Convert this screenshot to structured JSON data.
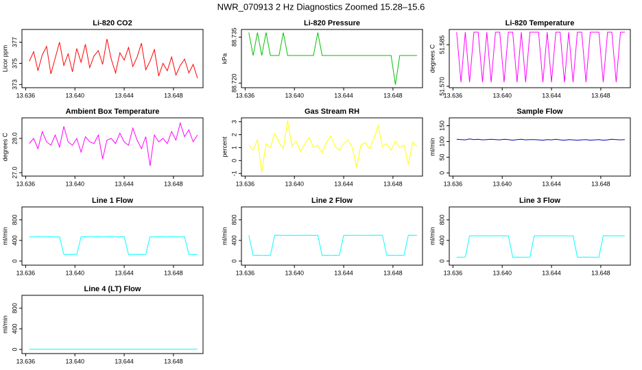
{
  "title": "NWR_070913 2 Hz Diagnostics Zoomed 15.28–15.6",
  "chart_data": [
    {
      "type": "line",
      "title": "Li-820 CO2",
      "ylabel": "Licor ppm",
      "color": "#ff0000",
      "x": [
        13.6363,
        13.63665,
        13.637,
        13.63735,
        13.6377,
        13.63805,
        13.6384,
        13.63875,
        13.6391,
        13.63945,
        13.6398,
        13.64015,
        13.6405,
        13.64085,
        13.6412,
        13.64155,
        13.6419,
        13.64225,
        13.6426,
        13.64295,
        13.6433,
        13.64365,
        13.644,
        13.64435,
        13.6447,
        13.64505,
        13.6454,
        13.64575,
        13.6461,
        13.64645,
        13.6468,
        13.64715,
        13.6475,
        13.64785,
        13.6482,
        13.64855,
        13.6489,
        13.64925,
        13.6496,
        13.64995
      ],
      "values": [
        375.2,
        376.1,
        374.3,
        375.8,
        376.6,
        374.0,
        375.5,
        377.0,
        374.8,
        375.9,
        374.2,
        376.4,
        375.1,
        376.8,
        374.6,
        375.7,
        376.2,
        374.9,
        377.3,
        375.4,
        374.1,
        376.0,
        375.3,
        376.5,
        374.7,
        375.6,
        376.9,
        374.4,
        375.2,
        376.3,
        373.8,
        375.0,
        374.3,
        375.6,
        373.9,
        374.8,
        375.4,
        374.1,
        374.9,
        373.6
      ],
      "xlim": [
        13.6357,
        13.6504
      ],
      "xticks": [
        13.636,
        {
          "value": 13.64,
          "label": "13.640"
        },
        13.644,
        13.648
      ],
      "ylim": [
        372.7,
        378.2
      ],
      "yticks": [
        373,
        375,
        377
      ]
    },
    {
      "type": "line",
      "title": "Li-820 Pressure",
      "ylabel": "kPa",
      "color": "#00c000",
      "x": [
        13.6363,
        13.63665,
        13.637,
        13.63735,
        13.6377,
        13.63805,
        13.6384,
        13.63875,
        13.6391,
        13.63945,
        13.6398,
        13.64015,
        13.6405,
        13.64085,
        13.6412,
        13.64155,
        13.6419,
        13.64225,
        13.6426,
        13.64295,
        13.6433,
        13.64365,
        13.644,
        13.64435,
        13.6447,
        13.64505,
        13.6454,
        13.64575,
        13.6461,
        13.64645,
        13.6468,
        13.64715,
        13.6475,
        13.64785,
        13.6482,
        13.64855,
        13.6489,
        13.64925,
        13.6496,
        13.64995
      ],
      "values": [
        88.7365,
        88.729,
        88.7365,
        88.729,
        88.7365,
        88.729,
        88.729,
        88.729,
        88.7365,
        88.729,
        88.729,
        88.729,
        88.729,
        88.729,
        88.729,
        88.729,
        88.7365,
        88.729,
        88.729,
        88.729,
        88.729,
        88.729,
        88.729,
        88.729,
        88.729,
        88.729,
        88.729,
        88.729,
        88.729,
        88.729,
        88.729,
        88.729,
        88.729,
        88.729,
        88.7195,
        88.729,
        88.729,
        88.729,
        88.729,
        88.729
      ],
      "xlim": [
        13.6357,
        13.6504
      ],
      "xticks": [
        13.636,
        {
          "value": 13.64,
          "label": "13.640"
        },
        13.644,
        13.648
      ],
      "ylim": [
        88.7185,
        88.7375
      ],
      "yticks": [
        {
          "value": 88.72,
          "label": "88.720"
        },
        88.735
      ]
    },
    {
      "type": "line",
      "title": "Li-820 Temperature",
      "ylabel": "degrees C",
      "color": "#ff00ff",
      "x": [
        13.6363,
        13.63665,
        13.637,
        13.63735,
        13.6377,
        13.63805,
        13.6384,
        13.63875,
        13.6391,
        13.63945,
        13.6398,
        13.64015,
        13.6405,
        13.64085,
        13.6412,
        13.64155,
        13.6419,
        13.64225,
        13.6426,
        13.64295,
        13.6433,
        13.64365,
        13.644,
        13.64435,
        13.6447,
        13.64505,
        13.6454,
        13.64575,
        13.6461,
        13.64645,
        13.6468,
        13.64715,
        13.6475,
        13.64785,
        13.6482,
        13.64855,
        13.6489,
        13.64925,
        13.6496,
        13.64995
      ],
      "values": [
        51.5895,
        51.5715,
        51.5895,
        51.5715,
        51.5895,
        51.5895,
        51.5715,
        51.5895,
        51.5715,
        51.5895,
        51.5895,
        51.5715,
        51.5895,
        51.5895,
        51.5715,
        51.5895,
        51.5715,
        51.5895,
        51.5895,
        51.5895,
        51.5715,
        51.5895,
        51.5715,
        51.5895,
        51.5895,
        51.5715,
        51.5895,
        51.5715,
        51.5895,
        51.5895,
        51.5715,
        51.5895,
        51.5895,
        51.5895,
        51.5715,
        51.5895,
        51.5895,
        51.5715,
        51.5895,
        51.5895
      ],
      "xlim": [
        13.6357,
        13.6504
      ],
      "xticks": [
        13.636,
        {
          "value": 13.64,
          "label": "13.640"
        },
        13.644,
        13.648
      ],
      "ylim": [
        51.5695,
        51.5905
      ],
      "yticks": [
        {
          "value": 51.57,
          "label": "51.570"
        },
        51.585
      ]
    },
    {
      "type": "line",
      "title": "Ambient Box Temperature",
      "ylabel": "degrees C",
      "color": "#ff00ff",
      "x": [
        13.6363,
        13.63665,
        13.637,
        13.63735,
        13.6377,
        13.63805,
        13.6384,
        13.63875,
        13.6391,
        13.63945,
        13.6398,
        13.64015,
        13.6405,
        13.64085,
        13.6412,
        13.64155,
        13.6419,
        13.64225,
        13.6426,
        13.64295,
        13.6433,
        13.64365,
        13.644,
        13.64435,
        13.6447,
        13.64505,
        13.6454,
        13.64575,
        13.6461,
        13.64645,
        13.6468,
        13.64715,
        13.6475,
        13.64785,
        13.6482,
        13.64855,
        13.6489,
        13.64925,
        13.6496,
        13.64995
      ],
      "values": [
        27.85,
        28.0,
        27.7,
        28.2,
        27.9,
        27.8,
        28.1,
        27.75,
        28.35,
        27.9,
        27.8,
        28.0,
        27.6,
        28.05,
        27.9,
        27.85,
        28.1,
        27.4,
        27.95,
        28.0,
        27.85,
        28.15,
        27.9,
        27.8,
        28.3,
        27.95,
        27.7,
        28.05,
        27.2,
        28.1,
        27.9,
        28.0,
        27.85,
        28.2,
        27.95,
        28.45,
        28.05,
        28.25,
        27.9,
        28.1
      ],
      "xlim": [
        13.6357,
        13.6504
      ],
      "xticks": [
        13.636,
        {
          "value": 13.64,
          "label": "13.640"
        },
        13.644,
        13.648
      ],
      "ylim": [
        26.9,
        28.6
      ],
      "yticks": [
        {
          "value": 27,
          "label": "27.0"
        },
        {
          "value": 28,
          "label": "28.0"
        }
      ]
    },
    {
      "type": "line",
      "title": "Gas Stream RH",
      "ylabel": "percent",
      "color": "#ffff00",
      "x": [
        13.6363,
        13.63665,
        13.637,
        13.63735,
        13.6377,
        13.63805,
        13.6384,
        13.63875,
        13.6391,
        13.63945,
        13.6398,
        13.64015,
        13.6405,
        13.64085,
        13.6412,
        13.64155,
        13.6419,
        13.64225,
        13.6426,
        13.64295,
        13.6433,
        13.64365,
        13.644,
        13.64435,
        13.6447,
        13.64505,
        13.6454,
        13.64575,
        13.6461,
        13.64645,
        13.6468,
        13.64715,
        13.6475,
        13.64785,
        13.6482,
        13.64855,
        13.6489,
        13.64925,
        13.6496,
        13.64995
      ],
      "values": [
        1.2,
        0.8,
        1.6,
        -0.9,
        1.3,
        1.0,
        2.1,
        1.4,
        0.9,
        3.1,
        1.1,
        1.5,
        0.7,
        1.3,
        1.8,
        1.0,
        1.2,
        0.6,
        1.4,
        1.9,
        1.1,
        0.8,
        1.3,
        1.6,
        1.0,
        -0.5,
        1.2,
        1.4,
        0.9,
        1.7,
        2.7,
        1.1,
        1.3,
        0.8,
        1.5,
        1.0,
        1.2,
        -0.3,
        1.4,
        1.1
      ],
      "xlim": [
        13.6357,
        13.6504
      ],
      "xticks": [
        13.636,
        {
          "value": 13.64,
          "label": "13.640"
        },
        13.644,
        13.648
      ],
      "ylim": [
        -1.2,
        3.3
      ],
      "yticks": [
        -1,
        0,
        1,
        2,
        3
      ]
    },
    {
      "type": "line",
      "title": "Sample Flow",
      "ylabel": "ml/min",
      "color": "#0000c0",
      "x": [
        13.6363,
        13.63665,
        13.637,
        13.63735,
        13.6377,
        13.63805,
        13.6384,
        13.63875,
        13.6391,
        13.63945,
        13.6398,
        13.64015,
        13.6405,
        13.64085,
        13.6412,
        13.64155,
        13.6419,
        13.64225,
        13.6426,
        13.64295,
        13.6433,
        13.64365,
        13.644,
        13.64435,
        13.6447,
        13.64505,
        13.6454,
        13.64575,
        13.6461,
        13.64645,
        13.6468,
        13.64715,
        13.6475,
        13.64785,
        13.6482,
        13.64855,
        13.6489,
        13.64925,
        13.6496,
        13.64995
      ],
      "values": [
        107,
        106,
        105,
        108,
        106,
        107,
        105,
        106,
        107,
        106,
        105,
        107,
        106,
        104,
        106,
        107,
        105,
        106,
        106,
        105,
        104,
        106,
        105,
        107,
        105,
        104,
        106,
        105,
        104,
        105,
        106,
        104,
        105,
        106,
        104,
        105,
        107,
        106,
        105,
        106
      ],
      "xlim": [
        13.6357,
        13.6504
      ],
      "xticks": [
        13.636,
        {
          "value": 13.64,
          "label": "13.640"
        },
        13.644,
        13.648
      ],
      "ylim": [
        -10,
        175
      ],
      "yticks": [
        0,
        50,
        100,
        150
      ]
    },
    {
      "type": "line",
      "title": "Line 1 Flow",
      "ylabel": "ml/min",
      "color": "#00ffff",
      "x": [
        13.6363,
        13.63665,
        13.637,
        13.63735,
        13.6377,
        13.63805,
        13.6384,
        13.63875,
        13.6391,
        13.63945,
        13.6398,
        13.64015,
        13.6405,
        13.64085,
        13.6412,
        13.64155,
        13.6419,
        13.64225,
        13.6426,
        13.64295,
        13.6433,
        13.64365,
        13.644,
        13.64435,
        13.6447,
        13.64505,
        13.6454,
        13.64575,
        13.6461,
        13.64645,
        13.6468,
        13.64715,
        13.6475,
        13.64785,
        13.6482,
        13.64855,
        13.6489,
        13.64925,
        13.6496,
        13.64995
      ],
      "values": [
        470,
        468,
        471,
        469,
        470,
        472,
        469,
        470,
        130,
        128,
        131,
        129,
        470,
        471,
        469,
        470,
        472,
        468,
        470,
        471,
        469,
        470,
        471,
        130,
        129,
        131,
        128,
        130,
        470,
        469,
        471,
        470,
        468,
        472,
        470,
        469,
        471,
        130,
        128,
        129
      ],
      "xlim": [
        13.6357,
        13.6504
      ],
      "xticks": [
        13.636,
        {
          "value": 13.64,
          "label": "13.640"
        },
        13.644,
        13.648
      ],
      "ylim": [
        -80,
        1050
      ],
      "yticks": [
        0,
        400,
        800
      ]
    },
    {
      "type": "line",
      "title": "Line 2 Flow",
      "ylabel": "ml/min",
      "color": "#00ffff",
      "x": [
        13.6363,
        13.63665,
        13.637,
        13.63735,
        13.6377,
        13.63805,
        13.6384,
        13.63875,
        13.6391,
        13.63945,
        13.6398,
        13.64015,
        13.6405,
        13.64085,
        13.6412,
        13.64155,
        13.6419,
        13.64225,
        13.6426,
        13.64295,
        13.6433,
        13.64365,
        13.644,
        13.64435,
        13.6447,
        13.64505,
        13.6454,
        13.64575,
        13.6461,
        13.64645,
        13.6468,
        13.64715,
        13.6475,
        13.64785,
        13.6482,
        13.64855,
        13.6489,
        13.64925,
        13.6496,
        13.64995
      ],
      "values": [
        500,
        110,
        112,
        109,
        111,
        110,
        500,
        502,
        499,
        501,
        500,
        498,
        501,
        500,
        502,
        499,
        501,
        110,
        111,
        109,
        112,
        110,
        500,
        501,
        499,
        502,
        500,
        498,
        501,
        500,
        502,
        499,
        110,
        111,
        109,
        112,
        110,
        500,
        501,
        499
      ],
      "xlim": [
        13.6357,
        13.6504
      ],
      "xticks": [
        13.636,
        {
          "value": 13.64,
          "label": "13.640"
        },
        13.644,
        13.648
      ],
      "ylim": [
        -80,
        1050
      ],
      "yticks": [
        0,
        400,
        800
      ]
    },
    {
      "type": "line",
      "title": "Line 3 Flow",
      "ylabel": "ml/min",
      "color": "#00ffff",
      "x": [
        13.6363,
        13.63665,
        13.637,
        13.63735,
        13.6377,
        13.63805,
        13.6384,
        13.63875,
        13.6391,
        13.63945,
        13.6398,
        13.64015,
        13.6405,
        13.64085,
        13.6412,
        13.64155,
        13.6419,
        13.64225,
        13.6426,
        13.64295,
        13.6433,
        13.64365,
        13.644,
        13.64435,
        13.6447,
        13.64505,
        13.6454,
        13.64575,
        13.6461,
        13.64645,
        13.6468,
        13.64715,
        13.6475,
        13.64785,
        13.6482,
        13.64855,
        13.6489,
        13.64925,
        13.6496,
        13.64995
      ],
      "values": [
        75,
        74,
        76,
        490,
        492,
        489,
        491,
        490,
        488,
        491,
        490,
        492,
        489,
        75,
        76,
        74,
        75,
        76,
        490,
        491,
        489,
        492,
        490,
        488,
        491,
        490,
        489,
        492,
        75,
        74,
        76,
        75,
        74,
        76,
        490,
        491,
        489,
        492,
        490,
        491
      ],
      "xlim": [
        13.6357,
        13.6504
      ],
      "xticks": [
        13.636,
        {
          "value": 13.64,
          "label": "13.640"
        },
        13.644,
        13.648
      ],
      "ylim": [
        -80,
        1050
      ],
      "yticks": [
        0,
        400,
        800
      ]
    },
    {
      "type": "line",
      "title": "Line 4 (LT) Flow",
      "ylabel": "ml/min",
      "color": "#00ffff",
      "x": [
        13.6363,
        13.63665,
        13.637,
        13.63735,
        13.6377,
        13.63805,
        13.6384,
        13.63875,
        13.6391,
        13.63945,
        13.6398,
        13.64015,
        13.6405,
        13.64085,
        13.6412,
        13.64155,
        13.6419,
        13.64225,
        13.6426,
        13.64295,
        13.6433,
        13.64365,
        13.644,
        13.64435,
        13.6447,
        13.64505,
        13.6454,
        13.64575,
        13.6461,
        13.64645,
        13.6468,
        13.64715,
        13.6475,
        13.64785,
        13.6482,
        13.64855,
        13.6489,
        13.64925,
        13.6496,
        13.64995
      ],
      "values": [
        5,
        5,
        5,
        5,
        5,
        5,
        5,
        5,
        5,
        5,
        5,
        5,
        5,
        5,
        5,
        5,
        5,
        5,
        5,
        5,
        5,
        5,
        5,
        5,
        5,
        5,
        5,
        5,
        5,
        5,
        5,
        5,
        5,
        5,
        5,
        5,
        5,
        5,
        5,
        5
      ],
      "xlim": [
        13.6357,
        13.6504
      ],
      "xticks": [
        13.636,
        {
          "value": 13.64,
          "label": "13.640"
        },
        13.644,
        13.648
      ],
      "ylim": [
        -80,
        1050
      ],
      "yticks": [
        0,
        400,
        800
      ]
    }
  ]
}
